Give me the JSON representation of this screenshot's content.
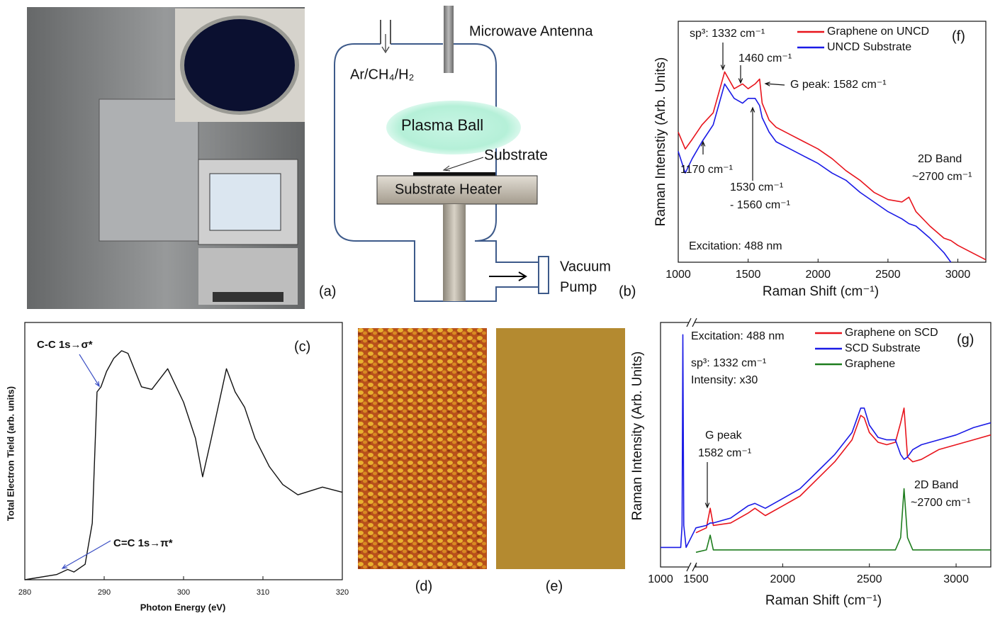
{
  "panel_a": {
    "label": "(a)"
  },
  "diagram": {
    "label": "(b)",
    "antenna": "Microwave Antenna",
    "gas": "Ar/CH₄/H₂",
    "plasma": "Plasma Ball",
    "substrate": "Substrate",
    "heater": "Substrate Heater",
    "pump": [
      "Vacuum",
      "Pump"
    ]
  },
  "panel_d": {
    "label": "(d)"
  },
  "panel_e": {
    "label": "(e)"
  },
  "chart_data": [
    {
      "type": "line",
      "panel_label": "(c)",
      "x_label": "Photon Energy (eV)",
      "y_label": "Total Electron Tield (arb. units)",
      "xlim": [
        280,
        320
      ],
      "xticks": [
        280,
        290,
        300,
        310,
        320
      ],
      "ylim": [
        0,
        100
      ],
      "annotations": [
        "C-C 1s→σ*",
        "C=C 1s→π*"
      ],
      "x": [
        280,
        284,
        285.4,
        286.2,
        287.6,
        288.5,
        289.1,
        289.6,
        290.3,
        291.2,
        292.2,
        293,
        294.7,
        296,
        298,
        300,
        301.5,
        302.4,
        303.5,
        305.4,
        306.5,
        307.7,
        309,
        310.8,
        312.5,
        314.4,
        317.5,
        320
      ],
      "series": [
        {
          "color": "#111111",
          "values": [
            0,
            2,
            4,
            3,
            6,
            22,
            73,
            75,
            81,
            86,
            89,
            88,
            75,
            74,
            82,
            69,
            55,
            40,
            55,
            82,
            73,
            67,
            55,
            44,
            37,
            33,
            36,
            34
          ]
        }
      ]
    },
    {
      "type": "line",
      "panel_label": "(f)",
      "x_label": "Raman Shift (cm⁻¹)",
      "y_label": "Raman Intenstiy (Arb. Units)",
      "xlim": [
        1000,
        3200
      ],
      "xticks": [
        1000,
        1500,
        2000,
        2500,
        3000
      ],
      "ylim": [
        0,
        100
      ],
      "annotations": [
        "sp³: 1332 cm⁻¹",
        "1460 cm⁻¹",
        "G peak: 1582 cm⁻¹",
        "1170 cm⁻¹",
        "1530 cm⁻¹",
        "- 1560 cm⁻¹",
        "2D Band",
        "~2700 cm⁻¹",
        "Excitation: 488 nm"
      ],
      "x": [
        1000,
        1050,
        1100,
        1170,
        1250,
        1332,
        1400,
        1460,
        1500,
        1550,
        1582,
        1600,
        1650,
        1700,
        1800,
        1900,
        2000,
        2100,
        2200,
        2300,
        2400,
        2500,
        2600,
        2650,
        2700,
        2800,
        2900,
        2950,
        3000,
        3100,
        3200
      ],
      "series": [
        {
          "name": "Graphene on UNCD",
          "color": "#e8141c",
          "values": [
            54,
            47,
            51,
            57,
            62,
            79,
            72,
            74,
            72,
            74,
            76,
            66,
            59,
            56,
            53,
            50,
            47,
            43,
            38,
            34,
            29,
            26,
            25,
            27,
            21,
            15,
            10,
            9,
            7,
            4,
            1
          ]
        },
        {
          "name": "UNCD Substrate",
          "color": "#1a1ae6",
          "values": [
            46,
            37,
            43,
            50,
            57,
            74,
            68,
            66,
            68,
            68,
            65,
            60,
            54,
            50,
            47,
            44,
            41,
            37,
            34,
            29,
            25,
            21,
            18,
            16,
            15,
            10,
            4,
            0,
            null,
            null,
            null
          ]
        }
      ]
    },
    {
      "type": "line",
      "panel_label": "(g)",
      "x_label": "Raman Shift (cm⁻¹)",
      "y_label": "Raman Intensity (Arb. Units)",
      "xlim": [
        1000,
        3200
      ],
      "xbreak": [
        1400,
        1500
      ],
      "xticks": [
        1000,
        1500,
        2000,
        2500,
        3000
      ],
      "ylim": [
        0,
        100
      ],
      "annotations": [
        "Excitation: 488 nm",
        "sp³: 1332 cm⁻¹",
        "Intensity: x30",
        "G peak",
        "1582 cm⁻¹",
        "2D Band",
        "~2700 cm⁻¹"
      ],
      "x": [
        1000,
        1300,
        1320,
        1332,
        1345,
        1380,
        1500,
        1560,
        1582,
        1600,
        1700,
        1800,
        1840,
        1900,
        2000,
        2100,
        2200,
        2300,
        2400,
        2450,
        2470,
        2500,
        2550,
        2600,
        2650,
        2680,
        2700,
        2720,
        2750,
        2800,
        2900,
        3000,
        3100,
        3200
      ],
      "series": [
        {
          "name": "Graphene on SCD",
          "color": "#e8141c",
          "values": [
            null,
            null,
            null,
            null,
            null,
            null,
            14,
            16,
            24,
            17,
            18,
            22,
            24,
            21,
            25,
            29,
            36,
            43,
            52,
            62,
            61,
            55,
            51,
            50,
            51,
            59,
            65,
            45,
            43,
            44,
            48,
            50,
            52,
            54
          ]
        },
        {
          "name": "SCD Substrate",
          "color": "#1a1ae6",
          "values": [
            8,
            8,
            17,
            95,
            17,
            8,
            16,
            17,
            18,
            18,
            20,
            25,
            26,
            24,
            28,
            32,
            39,
            46,
            55,
            65,
            65,
            58,
            53,
            52,
            52,
            46,
            44,
            45,
            48,
            50,
            52,
            54,
            57,
            59
          ]
        },
        {
          "name": "Graphene",
          "color": "#1e7d1e",
          "values": [
            null,
            null,
            null,
            null,
            null,
            null,
            6,
            7,
            13,
            7,
            7,
            7,
            7,
            7,
            7,
            7,
            7,
            7,
            7,
            7,
            7,
            7,
            7,
            7,
            7,
            12,
            32,
            12,
            7,
            7,
            7,
            7,
            7,
            7
          ]
        }
      ]
    }
  ]
}
